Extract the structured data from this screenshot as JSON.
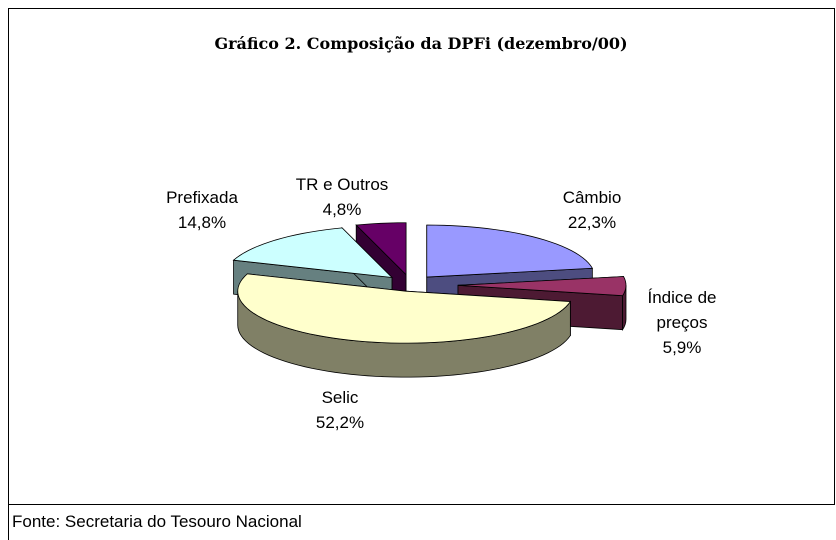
{
  "chart_data": {
    "type": "pie",
    "title": "Gráfico 2. Composição da DPFi (dezembro/00)",
    "categories": [
      "Câmbio",
      "Índice de preços",
      "Selic",
      "Prefixada",
      "TR e Outros"
    ],
    "values": [
      22.3,
      5.9,
      52.2,
      14.8,
      4.8
    ],
    "value_labels": [
      "22,3%",
      "5,9%",
      "52,2%",
      "14,8%",
      "4,8%"
    ],
    "colors": [
      "#9999ff",
      "#993366",
      "#ffffcc",
      "#ccffff",
      "#660066"
    ],
    "three_d": true,
    "source": "Fonte: Secretaria do Tesouro Nacional"
  }
}
